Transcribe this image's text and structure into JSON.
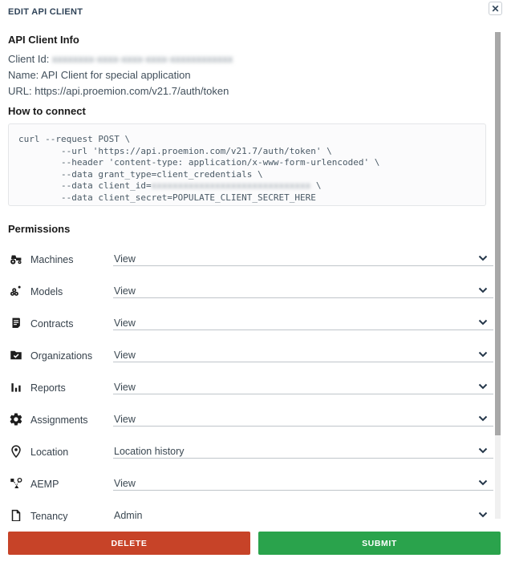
{
  "modal": {
    "title": "EDIT API CLIENT",
    "close_glyph": "✕"
  },
  "sections": {
    "client_info": {
      "heading": "API Client Info",
      "client_id_label": "Client Id: ",
      "client_id_redacted": "xxxxxxxx-xxxx-xxxx-xxxx-xxxxxxxxxxxx",
      "name_line": "Name: API Client for special application",
      "url_line": "URL: https://api.proemion.com/v21.7/auth/token"
    },
    "how_to_connect": {
      "heading": "How to connect",
      "code_lines": [
        "curl --request POST \\",
        "        --url 'https://api.proemion.com/v21.7/auth/token' \\",
        "        --header 'content-type: application/x-www-form-urlencoded' \\",
        "        --data grant_type=client_credentials \\",
        "        --data client_secret=POPULATE_CLIENT_SECRET_HERE"
      ],
      "code_client_id_prefix": "        --data client_id=",
      "code_client_id_redacted": "xxxxxxxxxxxxxxxxxxxxxxxxxxxxxx",
      "code_client_id_suffix": " \\"
    },
    "permissions": {
      "heading": "Permissions",
      "rows": [
        {
          "icon": "tractor-icon",
          "label": "Machines",
          "value": "View"
        },
        {
          "icon": "gears-cluster-icon",
          "label": "Models",
          "value": "View"
        },
        {
          "icon": "contract-icon",
          "label": "Contracts",
          "value": "View"
        },
        {
          "icon": "folder-check-icon",
          "label": "Organizations",
          "value": "View"
        },
        {
          "icon": "bar-chart-icon",
          "label": "Reports",
          "value": "View"
        },
        {
          "icon": "gear-icon",
          "label": "Assignments",
          "value": "View"
        },
        {
          "icon": "map-pin-icon",
          "label": "Location",
          "value": "Location history"
        },
        {
          "icon": "network-nodes-icon",
          "label": "AEMP",
          "value": "View"
        },
        {
          "icon": "document-icon",
          "label": "Tenancy",
          "value": "Admin"
        }
      ]
    }
  },
  "footer": {
    "delete_label": "DELETE",
    "submit_label": "SUBMIT"
  },
  "colors": {
    "title_text": "#2f4358",
    "delete_button": "#c74328",
    "submit_button": "#2aa34c",
    "icon_black": "#1d1d1d",
    "chevron": "#25374a"
  }
}
